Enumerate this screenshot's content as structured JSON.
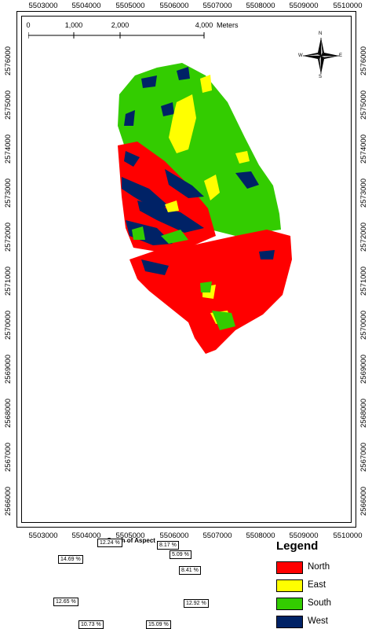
{
  "axes": {
    "x_ticks": [
      "5503000",
      "5504000",
      "5505000",
      "5506000",
      "5507000",
      "5508000",
      "5509000",
      "5510000"
    ],
    "y_ticks": [
      "2576000",
      "2575000",
      "2574000",
      "2573000",
      "2572000",
      "2571000",
      "2570000",
      "2569000",
      "2568000",
      "2567000",
      "2566000"
    ]
  },
  "scalebar": {
    "labels": [
      "0",
      "1,000",
      "2,000",
      "4,000"
    ],
    "units": "Meters"
  },
  "north_arrow": {
    "n": "N",
    "s": "S",
    "e": "E",
    "w": "W",
    "icon": "compass-rose-icon"
  },
  "legend": {
    "title": "Legend",
    "items": [
      {
        "label": "North",
        "color": "#ff0000"
      },
      {
        "label": "East",
        "color": "#ffff00"
      },
      {
        "label": "South",
        "color": "#33cc00"
      },
      {
        "label": "West",
        "color": "#002266"
      }
    ]
  },
  "pie": {
    "title": "Graph of Aspect",
    "labels": [
      "12.24 %",
      "8.17 %",
      "5.09 %",
      "8.41 %",
      "12.92 %",
      "15.09 %",
      "10.73 %",
      "12.65 %",
      "14.69 %"
    ]
  },
  "chart_data": {
    "type": "pie",
    "title": "Graph of Aspect",
    "slices": [
      {
        "label": "12.24 %",
        "value": 12.24,
        "color": "#33cc00"
      },
      {
        "label": "8.17 %",
        "value": 8.17,
        "color": "#ffff00"
      },
      {
        "label": "5.09 %",
        "value": 5.09,
        "color": "#ffff00"
      },
      {
        "label": "8.41 %",
        "value": 8.41,
        "color": "#ff0000"
      },
      {
        "label": "12.92 %",
        "value": 12.92,
        "color": "#ff0000"
      },
      {
        "label": "15.09 %",
        "value": 15.09,
        "color": "#ff0000"
      },
      {
        "label": "10.73 %",
        "value": 10.73,
        "color": "#002266"
      },
      {
        "label": "12.65 %",
        "value": 12.65,
        "color": "#33cc00"
      },
      {
        "label": "14.69 %",
        "value": 14.69,
        "color": "#33cc00"
      }
    ]
  }
}
